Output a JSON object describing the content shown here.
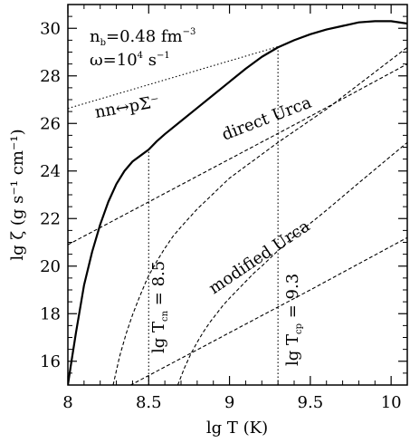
{
  "chart_data": {
    "type": "line",
    "title": "",
    "xlabel": "lg T (K)",
    "ylabel": "lg ζ (g s⁻¹ cm⁻¹)",
    "xlim": [
      8,
      10.1
    ],
    "ylim": [
      15,
      31
    ],
    "x_ticks": [
      8,
      8.5,
      9,
      9.5,
      10
    ],
    "x_tick_labels": [
      "8",
      "8.5",
      "9",
      "9.5",
      "10"
    ],
    "y_ticks": [
      16,
      18,
      20,
      22,
      24,
      26,
      28,
      30
    ],
    "y_tick_labels": [
      "16",
      "18",
      "20",
      "22",
      "24",
      "26",
      "28",
      "30"
    ],
    "grid": false,
    "legend": "none",
    "params": {
      "nb_text": "n",
      "nb_sub": "b",
      "nb_value": "=0.48  fm",
      "nb_exp": "−3",
      "omega_text": "ω=10",
      "omega_exp": "4",
      "omega_unit": " s",
      "omega_unit_exp": "−1"
    },
    "labels": {
      "hyperon": "nn↔pΣ⁻",
      "direct_urca": "direct  Urca",
      "modified_urca": "modified  Urca",
      "tcn_main": "lg T",
      "tcn_sub": "cn",
      "tcn_value": " = 8.5",
      "tcp_main": "lg T",
      "tcp_sub": "cp",
      "tcp_value": " = 9.3"
    },
    "critical_temperatures": {
      "tcn": 8.5,
      "tcp": 9.3
    },
    "series": [
      {
        "style": "solid-thick",
        "x": [
          8.0,
          8.02,
          8.05,
          8.08,
          8.1,
          8.15,
          8.2,
          8.25,
          8.3,
          8.35,
          8.4,
          8.45,
          8.5,
          8.55,
          8.6,
          8.7,
          8.8,
          8.9,
          9.0,
          9.1,
          9.2,
          9.3,
          9.4,
          9.5,
          9.6,
          9.7,
          9.8,
          9.9,
          10.0,
          10.1
        ],
        "y": [
          15.0,
          15.9,
          17.2,
          18.4,
          19.2,
          20.6,
          21.75,
          22.7,
          23.45,
          24.0,
          24.4,
          24.65,
          24.9,
          25.25,
          25.55,
          26.1,
          26.65,
          27.2,
          27.75,
          28.3,
          28.8,
          29.2,
          29.5,
          29.75,
          29.95,
          30.1,
          30.25,
          30.3,
          30.3,
          30.2
        ]
      },
      {
        "style": "dotted",
        "x": [
          8.0,
          8.5,
          9.0,
          9.3
        ],
        "y": [
          26.63,
          27.63,
          28.63,
          29.23
        ]
      },
      {
        "style": "dashed",
        "x": [
          8.0,
          8.5,
          9.0,
          9.5,
          10.1
        ],
        "y": [
          20.9,
          22.7,
          24.5,
          26.3,
          28.5
        ]
      },
      {
        "style": "dashed",
        "x": [
          8.0,
          8.5,
          9.0,
          9.5,
          10.1
        ],
        "y": [
          13.6,
          15.4,
          17.2,
          19.0,
          21.2
        ]
      },
      {
        "style": "dashed",
        "x": [
          8.28,
          8.32,
          8.36,
          8.4,
          8.44,
          8.48,
          8.5,
          8.55,
          8.6,
          8.65,
          8.7,
          8.8,
          8.9,
          9.0,
          9.3,
          9.6,
          10.1
        ],
        "y": [
          15.0,
          16.2,
          17.15,
          17.95,
          18.65,
          19.3,
          19.6,
          20.2,
          20.75,
          21.25,
          21.65,
          22.4,
          23.05,
          23.7,
          25.2,
          26.6,
          29.2
        ]
      },
      {
        "style": "dashed",
        "x": [
          8.68,
          8.72,
          8.76,
          8.8,
          8.84,
          8.88,
          8.92,
          8.96,
          9.0,
          9.05,
          9.1,
          9.15,
          9.2,
          9.3,
          9.4,
          9.6,
          9.8,
          10.1
        ],
        "y": [
          15.0,
          15.7,
          16.3,
          16.8,
          17.25,
          17.65,
          18.0,
          18.35,
          18.65,
          19.0,
          19.35,
          19.7,
          20.0,
          20.65,
          21.25,
          22.35,
          23.5,
          25.2
        ]
      }
    ],
    "vertical_markers": [
      {
        "style": "dotted",
        "x": 8.5,
        "y_from": 15.0,
        "y_to": 24.9
      },
      {
        "style": "dotted",
        "x": 9.3,
        "y_from": 15.0,
        "y_to": 29.2
      }
    ]
  }
}
